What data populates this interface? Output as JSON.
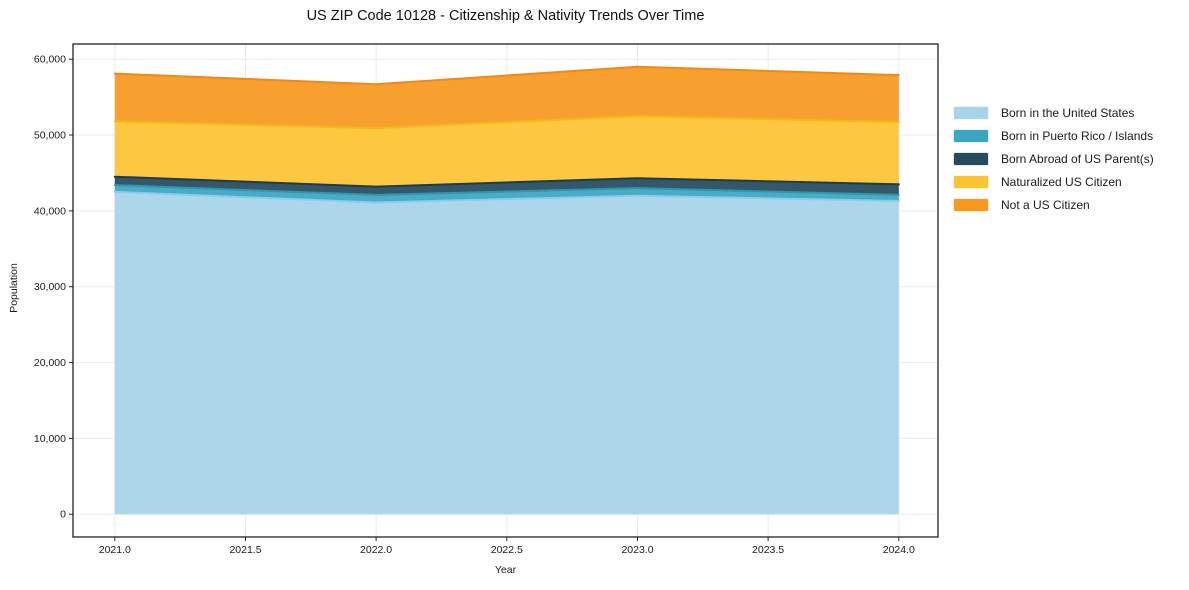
{
  "chart_data": {
    "type": "area",
    "stacked": true,
    "title": "US ZIP Code 10128 - Citizenship & Nativity Trends Over Time",
    "xlabel": "Year",
    "ylabel": "Population",
    "x": [
      2021,
      2022,
      2023,
      2024
    ],
    "series": [
      {
        "name": "Born in the United States",
        "values": [
          42500,
          41100,
          42000,
          41300
        ],
        "color": "#A6D4E9",
        "line_color": "#87CEEB"
      },
      {
        "name": "Born in Puerto Rico / Islands",
        "values": [
          900,
          1000,
          1000,
          800
        ],
        "color": "#3BA6C0",
        "line_color": "#2E96AF"
      },
      {
        "name": "Born Abroad of US Parent(s)",
        "values": [
          1100,
          1100,
          1300,
          1400
        ],
        "color": "#254B5E",
        "line_color": "#1B3D4E"
      },
      {
        "name": "Naturalized US Citizen",
        "values": [
          7300,
          7700,
          8200,
          8200
        ],
        "color": "#FDC431",
        "line_color": "#F5B917"
      },
      {
        "name": "Not a US Citizen",
        "values": [
          6300,
          5800,
          6500,
          6200
        ],
        "color": "#F8991F",
        "line_color": "#F08A15"
      }
    ],
    "totals": [
      58100,
      56700,
      59000,
      57900
    ],
    "xlim": [
      2020.84,
      2024.15
    ],
    "ylim": [
      -3000,
      62000
    ],
    "xticks": {
      "values": [
        2021.0,
        2021.5,
        2022.0,
        2022.5,
        2023.0,
        2023.5,
        2024.0
      ],
      "labels": [
        "2021.0",
        "2021.5",
        "2022.0",
        "2022.5",
        "2023.0",
        "2023.5",
        "2024.0"
      ]
    },
    "yticks": {
      "values": [
        0,
        10000,
        20000,
        30000,
        40000,
        50000,
        60000
      ],
      "labels": [
        "0",
        "10,000",
        "20,000",
        "30,000",
        "40,000",
        "50,000",
        "60,000"
      ]
    },
    "grid": true,
    "legend_position": "right"
  }
}
